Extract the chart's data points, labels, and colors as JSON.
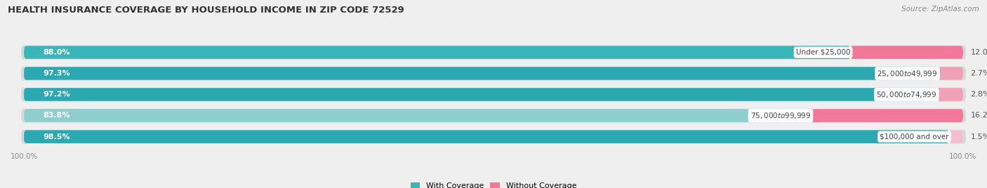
{
  "title": "HEALTH INSURANCE COVERAGE BY HOUSEHOLD INCOME IN ZIP CODE 72529",
  "source": "Source: ZipAtlas.com",
  "categories": [
    "Under $25,000",
    "$25,000 to $49,999",
    "$50,000 to $74,999",
    "$75,000 to $99,999",
    "$100,000 and over"
  ],
  "with_coverage": [
    88.0,
    97.3,
    97.2,
    83.8,
    98.5
  ],
  "without_coverage": [
    12.0,
    2.7,
    2.8,
    16.2,
    1.5
  ],
  "color_with": [
    "#3ab5b8",
    "#2ba8b0",
    "#2ba8b0",
    "#8ecece",
    "#2ba8b0"
  ],
  "color_without": [
    "#f07898",
    "#f0a0b8",
    "#f0a0b8",
    "#f07898",
    "#f0c0d0"
  ],
  "bg_color": "#efefef",
  "bar_bg": "#e8e8e8",
  "bar_height": 0.62,
  "title_fontsize": 9.5,
  "source_fontsize": 7.5,
  "label_fontsize": 8.0,
  "cat_fontsize": 7.5,
  "legend_fontsize": 8.0,
  "axis_label_fontsize": 7.5,
  "total_width": 100
}
